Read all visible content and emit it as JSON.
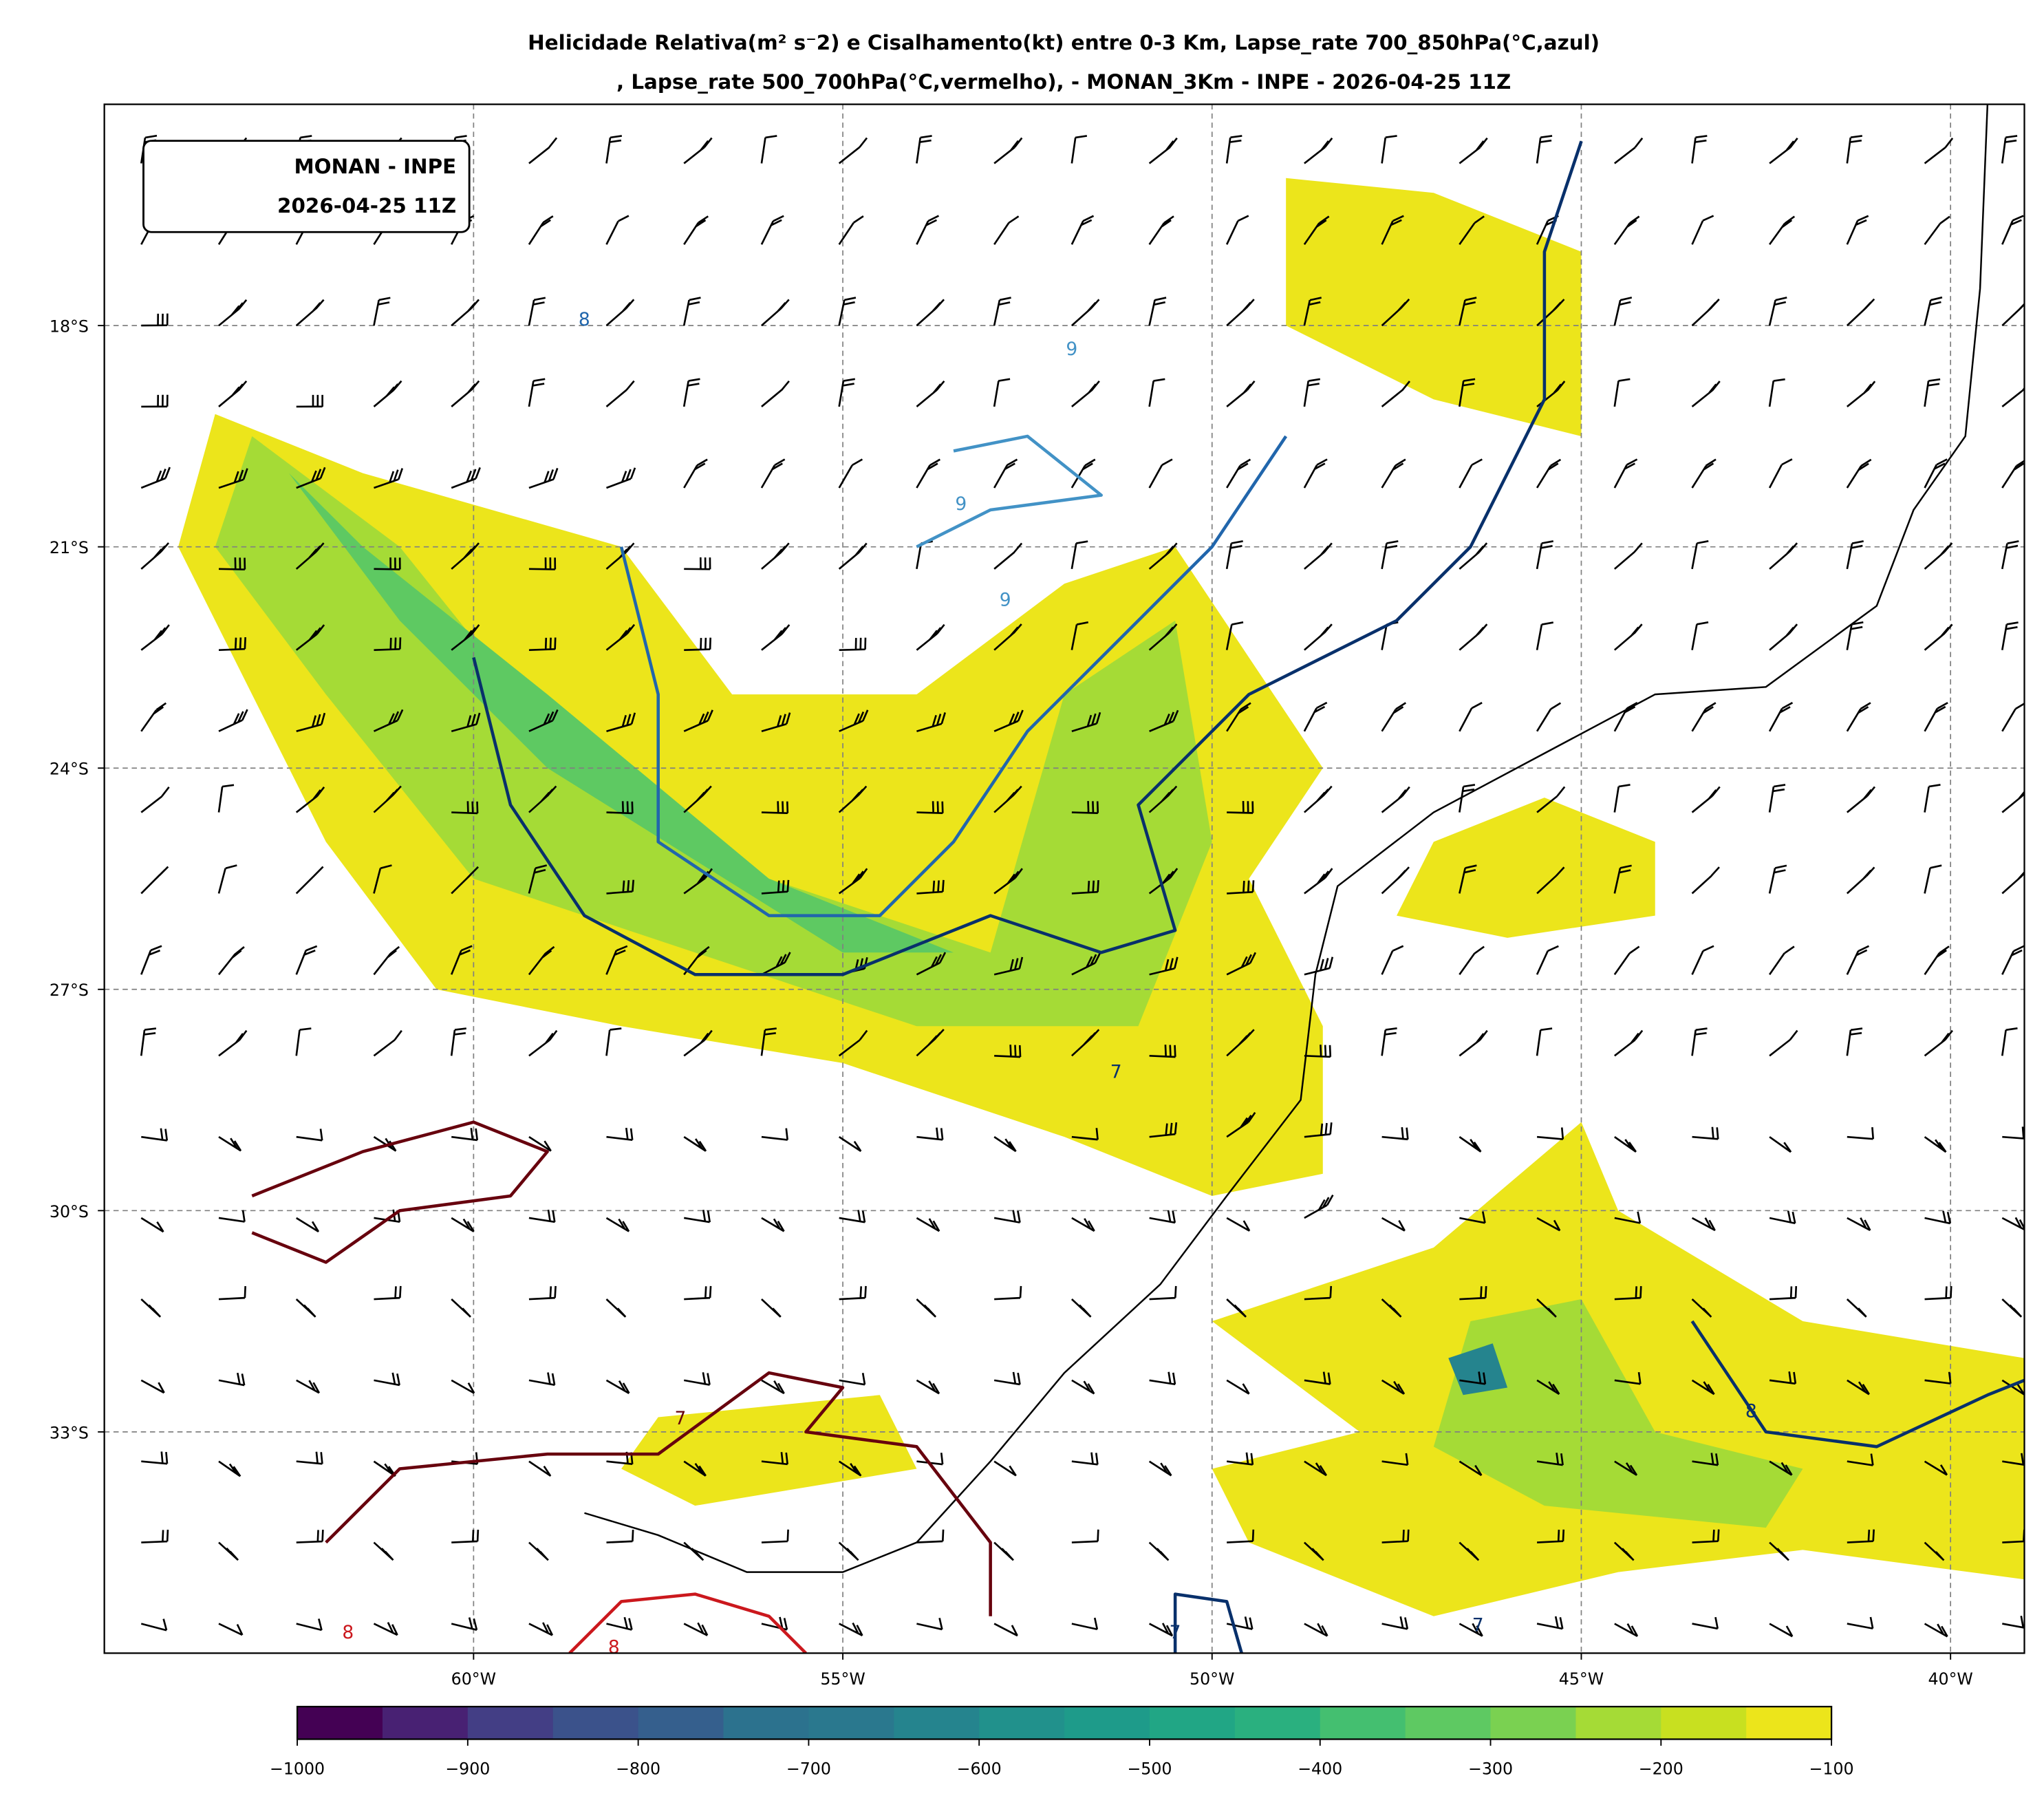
{
  "title": {
    "line1": "Helicidade Relativa(m² s⁻2) e Cisalhamento(kt) entre 0-3 Km, Lapse_rate 700_850hPa(°C,azul)",
    "line2": ", Lapse_rate 500_700hPa(°C,vermelho),  - MONAN_3Km - INPE - 2026-04-25 11Z"
  },
  "info_box": {
    "line1": "MONAN - INPE",
    "line2": "2026-04-25 11Z"
  },
  "map": {
    "lon_range": [
      -65,
      -39
    ],
    "lat_range": [
      -36,
      -15
    ],
    "grid": true,
    "lon_ticks": [
      {
        "value": -60,
        "label": "60°W"
      },
      {
        "value": -55,
        "label": "55°W"
      },
      {
        "value": -50,
        "label": "50°W"
      },
      {
        "value": -45,
        "label": "45°W"
      },
      {
        "value": -40,
        "label": "40°W"
      }
    ],
    "lat_ticks": [
      {
        "value": -18,
        "label": "18°S"
      },
      {
        "value": -21,
        "label": "21°S"
      },
      {
        "value": -24,
        "label": "24°S"
      },
      {
        "value": -27,
        "label": "27°S"
      },
      {
        "value": -30,
        "label": "30°S"
      },
      {
        "value": -33,
        "label": "33°S"
      }
    ]
  },
  "helicity_regions": [
    {
      "level": -125,
      "points": [
        [
          -63.5,
          -19.2
        ],
        [
          -61.5,
          -20
        ],
        [
          -58,
          -21
        ],
        [
          -56.5,
          -23
        ],
        [
          -54,
          -23
        ],
        [
          -52,
          -21.5
        ],
        [
          -50.5,
          -21
        ],
        [
          -49.5,
          -22.5
        ],
        [
          -48.5,
          -24
        ],
        [
          -49.5,
          -25.5
        ],
        [
          -48.5,
          -27.5
        ],
        [
          -48.5,
          -29.5
        ],
        [
          -50,
          -29.8
        ],
        [
          -52,
          -29
        ],
        [
          -55,
          -28
        ],
        [
          -58,
          -27.5
        ],
        [
          -60.5,
          -27
        ],
        [
          -62,
          -25
        ],
        [
          -63,
          -23
        ],
        [
          -64,
          -21
        ]
      ]
    },
    {
      "level": -125,
      "points": [
        [
          -47,
          -25
        ],
        [
          -45.5,
          -24.4
        ],
        [
          -44,
          -25
        ],
        [
          -44,
          -26
        ],
        [
          -46,
          -26.3
        ],
        [
          -47.5,
          -26
        ]
      ]
    },
    {
      "level": -125,
      "points": [
        [
          -50,
          -31.5
        ],
        [
          -47,
          -30.5
        ],
        [
          -45,
          -28.8
        ],
        [
          -44.5,
          -30
        ],
        [
          -42,
          -31.5
        ],
        [
          -39,
          -32
        ],
        [
          -39,
          -35
        ],
        [
          -42,
          -34.6
        ],
        [
          -44.5,
          -34.9
        ],
        [
          -47,
          -35.5
        ],
        [
          -49.5,
          -34.5
        ],
        [
          -50,
          -33.5
        ],
        [
          -48,
          -33
        ]
      ]
    },
    {
      "level": -125,
      "points": [
        [
          -57.5,
          -32.8
        ],
        [
          -54.5,
          -32.5
        ],
        [
          -54,
          -33.5
        ],
        [
          -57,
          -34
        ],
        [
          -58,
          -33.5
        ]
      ]
    },
    {
      "level": -125,
      "points": [
        [
          -49,
          -16
        ],
        [
          -47,
          -16.2
        ],
        [
          -45,
          -17
        ],
        [
          -45,
          -19.5
        ],
        [
          -47,
          -19
        ],
        [
          -49,
          -18
        ]
      ]
    },
    {
      "level": -225,
      "points": [
        [
          -63,
          -19.5
        ],
        [
          -61,
          -21
        ],
        [
          -59,
          -23.5
        ],
        [
          -56,
          -25.5
        ],
        [
          -53,
          -26.5
        ],
        [
          -52,
          -23
        ],
        [
          -50.5,
          -22
        ],
        [
          -50,
          -25
        ],
        [
          -51,
          -27.5
        ],
        [
          -54,
          -27.5
        ],
        [
          -57,
          -26.5
        ],
        [
          -60,
          -25.5
        ],
        [
          -62,
          -23
        ],
        [
          -63.5,
          -21
        ]
      ]
    },
    {
      "level": -225,
      "points": [
        [
          -46.5,
          -31.5
        ],
        [
          -45,
          -31.2
        ],
        [
          -44,
          -33
        ],
        [
          -42,
          -33.5
        ],
        [
          -42.5,
          -34.3
        ],
        [
          -45.5,
          -34
        ],
        [
          -47,
          -33.2
        ]
      ]
    },
    {
      "level": -325,
      "points": [
        [
          -62.5,
          -20
        ],
        [
          -61,
          -22
        ],
        [
          -59,
          -24
        ],
        [
          -55,
          -26.5
        ],
        [
          -53.5,
          -26.5
        ],
        [
          -56,
          -25.5
        ],
        [
          -59,
          -23
        ],
        [
          -61.5,
          -21
        ]
      ]
    },
    {
      "level": -625,
      "points": [
        [
          -46.8,
          -32
        ],
        [
          -46.2,
          -31.8
        ],
        [
          -46,
          -32.4
        ],
        [
          -46.6,
          -32.5
        ]
      ]
    }
  ],
  "colorbar": {
    "levels": [
      -1000,
      -950,
      -900,
      -850,
      -800,
      -750,
      -700,
      -650,
      -600,
      -550,
      -500,
      -450,
      -400,
      -350,
      -300,
      -250,
      -200,
      -150,
      -100
    ],
    "colors": [
      "#440154",
      "#482173",
      "#433e85",
      "#3b528b",
      "#355f8d",
      "#2c728e",
      "#2a788e",
      "#25848e",
      "#21918c",
      "#1e9b8a",
      "#21a685",
      "#2ab07f",
      "#44bf70",
      "#5ec962",
      "#7ad151",
      "#a5db36",
      "#c8e020",
      "#ece51b"
    ],
    "tick_labels": [
      "−1000",
      "−900",
      "−800",
      "−700",
      "−600",
      "−500",
      "−400",
      "−300",
      "−200",
      "−100"
    ]
  },
  "contours": [
    {
      "name": "lapse-700-850",
      "color": "#08306b",
      "points": [
        [
          -60,
          -22.5
        ],
        [
          -59.5,
          -24.5
        ],
        [
          -58.5,
          -26
        ],
        [
          -57,
          -26.8
        ],
        [
          -55,
          -26.8
        ],
        [
          -53,
          -26
        ],
        [
          -51.5,
          -26.5
        ],
        [
          -50.5,
          -26.2
        ],
        [
          -51,
          -24.5
        ],
        [
          -49.5,
          -23
        ],
        [
          -47.5,
          -22
        ],
        [
          -46.5,
          -21
        ],
        [
          -45.5,
          -19
        ],
        [
          -45.5,
          -17
        ],
        [
          -45,
          -15.5
        ]
      ]
    },
    {
      "name": "lapse-700-850",
      "color": "#2166ac",
      "points": [
        [
          -58,
          -21
        ],
        [
          -57.5,
          -23
        ],
        [
          -57.5,
          -25
        ],
        [
          -56,
          -26
        ],
        [
          -54.5,
          -26
        ],
        [
          -53.5,
          -25
        ],
        [
          -52.5,
          -23.5
        ],
        [
          -51,
          -22
        ],
        [
          -50,
          -21
        ],
        [
          -49,
          -19.5
        ]
      ]
    },
    {
      "name": "lapse-700-850",
      "color": "#4292c6",
      "points": [
        [
          -53.5,
          -19.7
        ],
        [
          -52.5,
          -19.5
        ],
        [
          -51.5,
          -20.3
        ],
        [
          -53,
          -20.5
        ],
        [
          -54,
          -21
        ]
      ]
    },
    {
      "name": "lapse-700-850",
      "color": "#08306b",
      "points": [
        [
          -43.5,
          -31.5
        ],
        [
          -42.5,
          -33
        ],
        [
          -41,
          -33.2
        ],
        [
          -39.5,
          -32.5
        ],
        [
          -39,
          -32.3
        ]
      ]
    },
    {
      "name": "lapse-700-850",
      "color": "#08306b",
      "points": [
        [
          -50.5,
          -36
        ],
        [
          -50.5,
          -35.2
        ],
        [
          -49.8,
          -35.3
        ],
        [
          -49.6,
          -36
        ]
      ]
    },
    {
      "name": "lapse-500-700",
      "color": "#67000d",
      "points": [
        [
          -63,
          -29.8
        ],
        [
          -61.5,
          -29.2
        ],
        [
          -60,
          -28.8
        ],
        [
          -59,
          -29.2
        ],
        [
          -59.5,
          -29.8
        ],
        [
          -61,
          -30
        ],
        [
          -62,
          -30.7
        ],
        [
          -63,
          -30.3
        ]
      ]
    },
    {
      "name": "lapse-500-700",
      "color": "#67000d",
      "points": [
        [
          -62,
          -34.5
        ],
        [
          -61,
          -33.5
        ],
        [
          -59,
          -33.3
        ],
        [
          -57.5,
          -33.3
        ],
        [
          -56,
          -32.2
        ],
        [
          -55,
          -32.4
        ],
        [
          -55.5,
          -33
        ],
        [
          -54,
          -33.2
        ],
        [
          -53,
          -34.5
        ],
        [
          -53,
          -35.5
        ]
      ]
    },
    {
      "name": "lapse-500-700",
      "color": "#cb181d",
      "points": [
        [
          -58.7,
          -36
        ],
        [
          -58,
          -35.3
        ],
        [
          -57,
          -35.2
        ],
        [
          -56,
          -35.5
        ],
        [
          -55.5,
          -36
        ]
      ]
    }
  ],
  "contour_labels": [
    {
      "text": "8",
      "lon": -58.5,
      "lat": -18,
      "color": "#2166ac"
    },
    {
      "text": "9",
      "lon": -51.9,
      "lat": -18.4,
      "color": "#4292c6"
    },
    {
      "text": "9",
      "lon": -53.4,
      "lat": -20.5,
      "color": "#4292c6"
    },
    {
      "text": "9",
      "lon": -52.8,
      "lat": -21.8,
      "color": "#4292c6"
    },
    {
      "text": "7",
      "lon": -51.3,
      "lat": -28.2,
      "color": "#08306b"
    },
    {
      "text": "8",
      "lon": -42.7,
      "lat": -32.8,
      "color": "#08306b"
    },
    {
      "text": "7",
      "lon": -50.5,
      "lat": -35.8,
      "color": "#08306b"
    },
    {
      "text": "7",
      "lon": -46.4,
      "lat": -35.7,
      "color": "#08306b"
    },
    {
      "text": "7",
      "lon": -57.2,
      "lat": -32.9,
      "color": "#67000d"
    },
    {
      "text": "8",
      "lon": -61.7,
      "lat": -35.8,
      "color": "#cb181d"
    },
    {
      "text": "8",
      "lon": -58.1,
      "lat": -36.0,
      "color": "#cb181d"
    }
  ],
  "coastline": [
    [
      -39.5,
      -15
    ],
    [
      -39.6,
      -17.5
    ],
    [
      -39.8,
      -19.5
    ],
    [
      -40.5,
      -20.5
    ],
    [
      -41,
      -21.8
    ],
    [
      -42.5,
      -22.9
    ],
    [
      -44,
      -23
    ],
    [
      -45.5,
      -23.8
    ],
    [
      -47,
      -24.6
    ],
    [
      -48.3,
      -25.6
    ],
    [
      -48.6,
      -26.8
    ],
    [
      -48.8,
      -28.5
    ],
    [
      -49.8,
      -29.8
    ],
    [
      -50.7,
      -31
    ],
    [
      -52,
      -32.2
    ],
    [
      -53,
      -33.4
    ],
    [
      -54,
      -34.5
    ],
    [
      -55,
      -34.9
    ],
    [
      -56.3,
      -34.9
    ],
    [
      -57.5,
      -34.4
    ],
    [
      -58.5,
      -34.1
    ]
  ]
}
